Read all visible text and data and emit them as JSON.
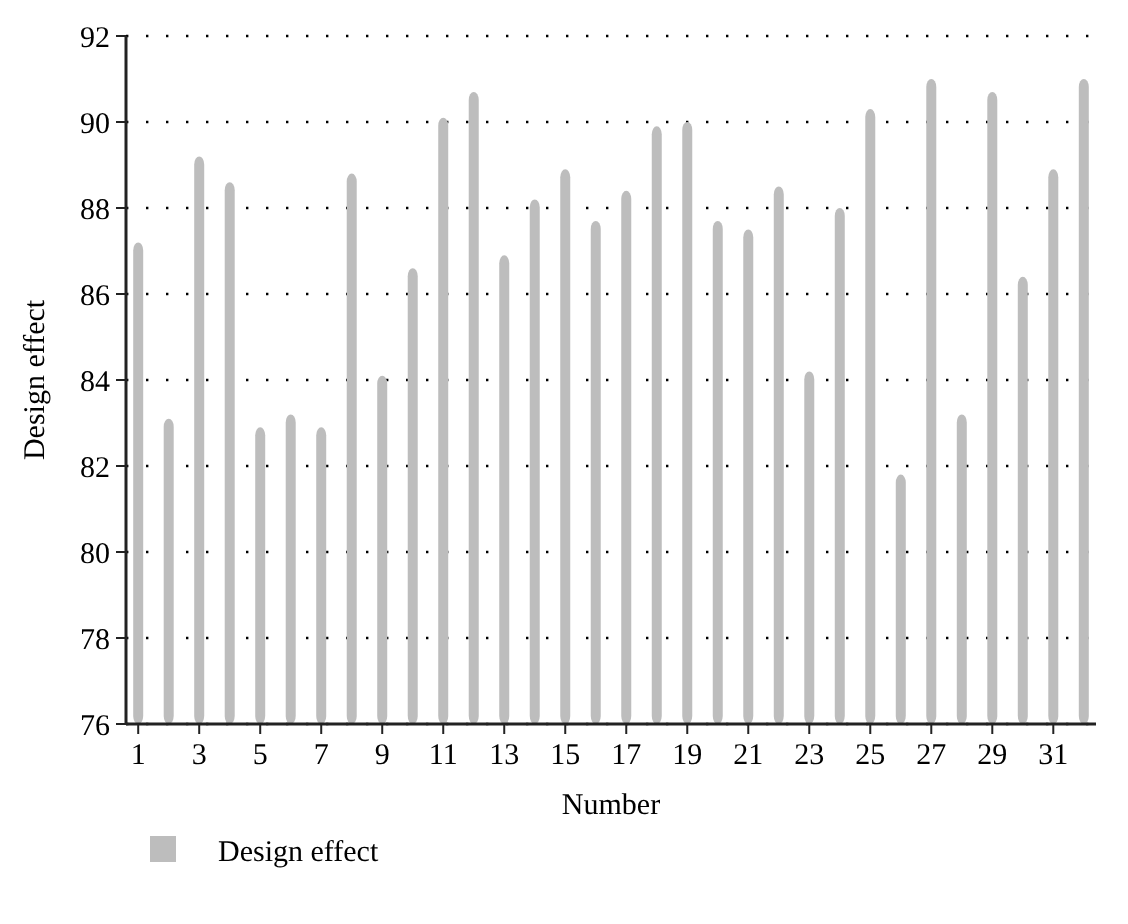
{
  "chart_data": {
    "type": "bar",
    "xlabel": "Number",
    "ylabel": "Design effect",
    "x": [
      1,
      2,
      3,
      4,
      5,
      6,
      7,
      8,
      9,
      10,
      11,
      12,
      13,
      14,
      15,
      16,
      17,
      18,
      19,
      20,
      21,
      22,
      23,
      24,
      25,
      26,
      27,
      28,
      29,
      30,
      31,
      32
    ],
    "xlim": [
      0.6,
      32.4
    ],
    "xticks": [
      1,
      3,
      5,
      7,
      9,
      11,
      13,
      15,
      17,
      19,
      21,
      23,
      25,
      27,
      29,
      31
    ],
    "series": [
      {
        "name": "Design effect",
        "color": "#bdbdbd",
        "values": [
          87.2,
          83.1,
          89.2,
          88.6,
          82.9,
          83.2,
          82.9,
          88.8,
          84.1,
          86.6,
          90.1,
          90.7,
          86.9,
          88.2,
          88.9,
          87.7,
          88.4,
          89.9,
          90.0,
          87.7,
          87.5,
          88.5,
          84.2,
          88.0,
          90.3,
          81.8,
          91.0,
          83.2,
          90.7,
          86.4,
          88.9,
          91.0
        ]
      }
    ],
    "ylim": [
      76,
      92
    ],
    "yticks": [
      76,
      78,
      80,
      82,
      84,
      86,
      88,
      90,
      92
    ],
    "grid": "y",
    "legend": "bottom left"
  }
}
